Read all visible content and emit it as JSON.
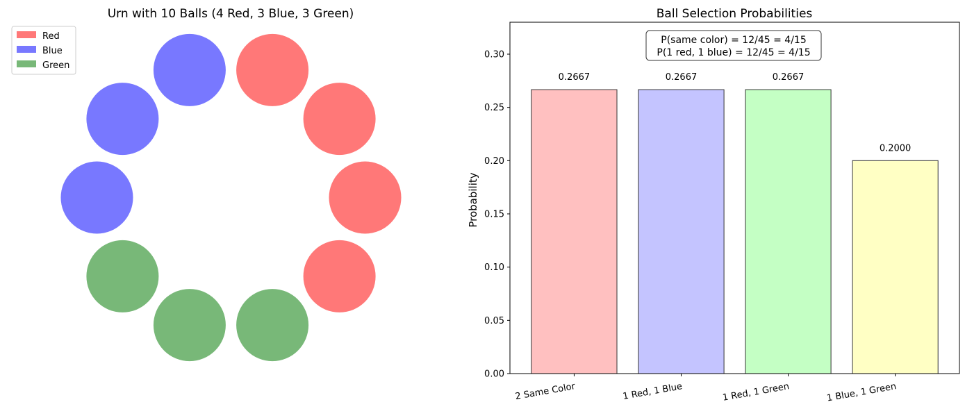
{
  "chart_data": [
    {
      "type": "diagram",
      "title": "Urn with 10 Balls (4 Red, 3 Blue, 3 Green)",
      "balls": [
        {
          "color": "Red"
        },
        {
          "color": "Red"
        },
        {
          "color": "Red"
        },
        {
          "color": "Red"
        },
        {
          "color": "Green"
        },
        {
          "color": "Green"
        },
        {
          "color": "Green"
        },
        {
          "color": "Blue"
        },
        {
          "color": "Blue"
        },
        {
          "color": "Blue"
        }
      ],
      "legend": {
        "position": "top-left",
        "entries": [
          {
            "label": "Red",
            "color": "#ff0000"
          },
          {
            "label": "Blue",
            "color": "#0000ff"
          },
          {
            "label": "Green",
            "color": "#008000"
          }
        ]
      },
      "colors": {
        "Red": "#ff7878",
        "Blue": "#7878ff",
        "Green": "#78b878"
      }
    },
    {
      "type": "bar",
      "title": "Ball Selection Probabilities",
      "ylabel": "Probability",
      "xlabel": "",
      "categories": [
        "2 Same Color",
        "1 Red, 1 Blue",
        "1 Red, 1 Green",
        "1 Blue, 1 Green"
      ],
      "values": [
        0.2667,
        0.2667,
        0.2667,
        0.2
      ],
      "value_labels": [
        "0.2667",
        "0.2667",
        "0.2667",
        "0.2000"
      ],
      "bar_colors": [
        "#ffc0c0",
        "#c4c4ff",
        "#c4ffc4",
        "#ffffc4"
      ],
      "ylim": [
        0,
        0.33
      ],
      "yticks": [
        0.0,
        0.05,
        0.1,
        0.15,
        0.2,
        0.25,
        0.3
      ],
      "ytick_labels": [
        "0.00",
        "0.05",
        "0.10",
        "0.15",
        "0.20",
        "0.25",
        "0.30"
      ],
      "annotation": [
        "P(same color) = 12/45 = 4/15",
        "P(1 red, 1 blue) = 12/45 = 4/15"
      ],
      "grid": false
    }
  ]
}
